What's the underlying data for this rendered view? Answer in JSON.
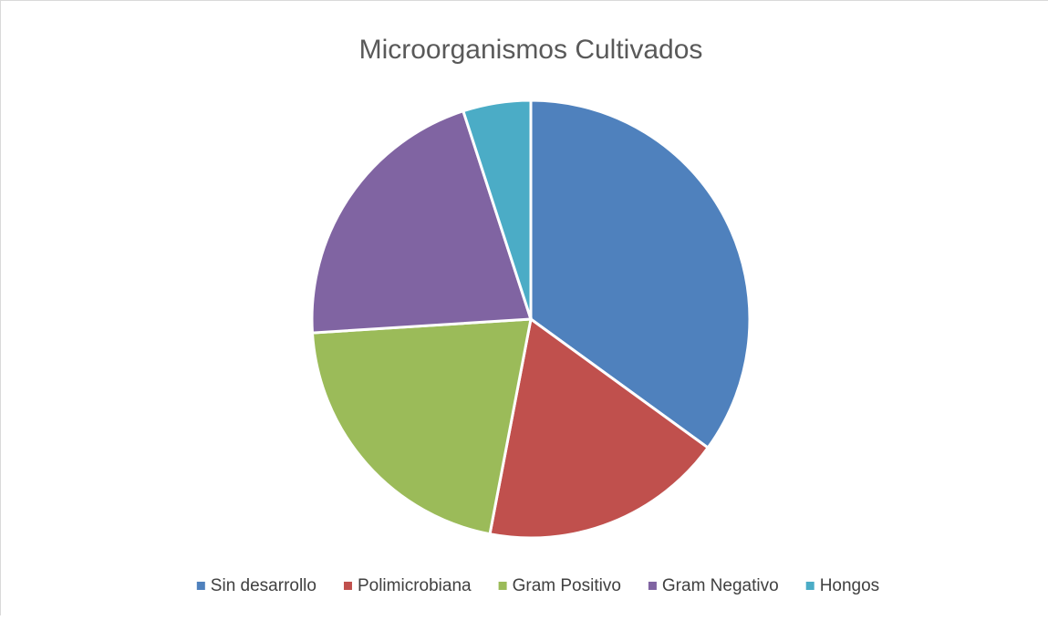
{
  "chart_data": {
    "type": "pie",
    "title": "Microorganismos Cultivados",
    "categories": [
      "Sin desarrollo",
      "Polimicrobiana",
      "Gram Positivo",
      "Gram Negativo",
      "Hongos"
    ],
    "values": [
      35,
      18,
      21,
      21,
      5
    ],
    "colors": [
      "#4f81bd",
      "#c0504d",
      "#9bbb59",
      "#8064a2",
      "#4bacc6"
    ],
    "legend": "bottom"
  }
}
